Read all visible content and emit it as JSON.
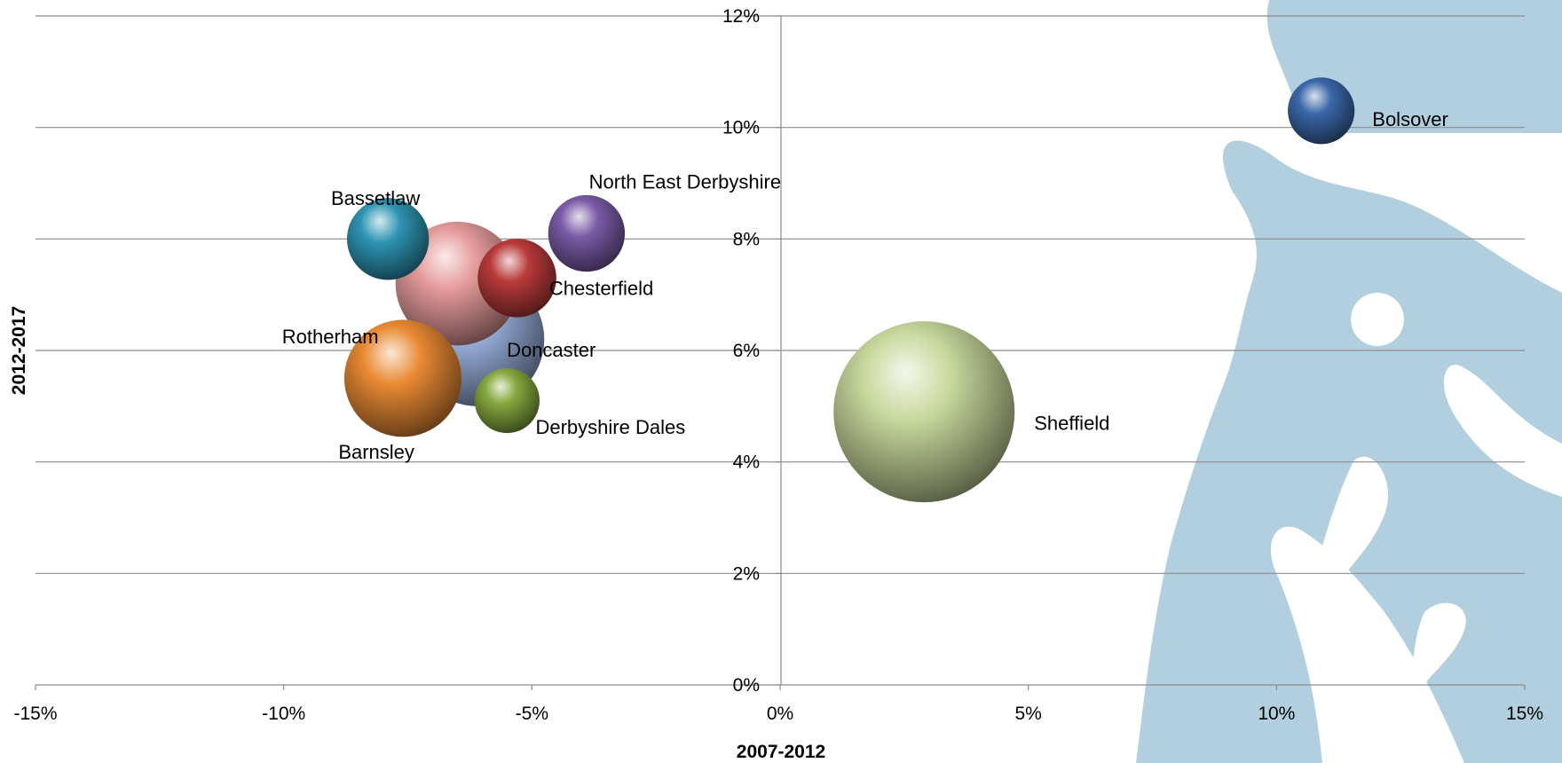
{
  "chart_data": {
    "type": "bubble",
    "xlabel": "2007-2012",
    "ylabel": "2012-2017",
    "xlim": [
      -15,
      15
    ],
    "ylim": [
      0,
      12
    ],
    "x_ticks": [
      "-15%",
      "-10%",
      "-5%",
      "0%",
      "5%",
      "10%",
      "15%"
    ],
    "y_ticks": [
      "0%",
      "2%",
      "4%",
      "6%",
      "8%",
      "10%",
      "12%"
    ],
    "grid": "horizontal",
    "legend": "none",
    "points": [
      {
        "label": "Bolsover",
        "x": 10.9,
        "y": 10.3,
        "size": 75,
        "color": "#3a68a8"
      },
      {
        "label": "Bassetlaw",
        "x": -7.9,
        "y": 8.0,
        "size": 113,
        "color": "#2e94b3"
      },
      {
        "label": "North East Derbyshire",
        "x": -3.9,
        "y": 8.1,
        "size": 99,
        "color": "#7a5ba6"
      },
      {
        "label": "Chesterfield",
        "x": -5.3,
        "y": 7.3,
        "size": 104,
        "color": "#b93a3a"
      },
      {
        "label": "Rotherham",
        "x": -6.5,
        "y": 7.2,
        "size": 258,
        "color": "#e59a9a"
      },
      {
        "label": "Doncaster",
        "x": -6.1,
        "y": 6.2,
        "size": 302,
        "color": "#93aad4"
      },
      {
        "label": "Barnsley",
        "x": -7.6,
        "y": 5.5,
        "size": 231,
        "color": "#e98a34"
      },
      {
        "label": "Derbyshire Dales",
        "x": -5.5,
        "y": 5.1,
        "size": 71,
        "color": "#85a83e"
      },
      {
        "label": "Sheffield",
        "x": 2.9,
        "y": 4.9,
        "size": 552,
        "color": "#c8d89c"
      }
    ]
  },
  "watermark": {
    "name": "crown-watermark",
    "color": "#b2cfdf"
  }
}
